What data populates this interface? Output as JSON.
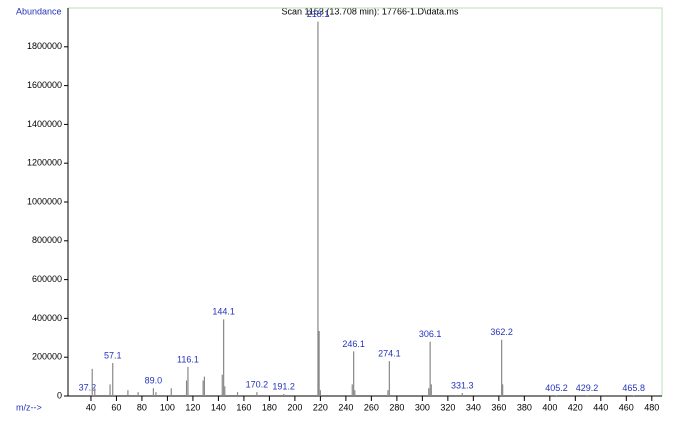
{
  "chart_data": {
    "type": "spectrum",
    "title": "Scan 1153 (13.708 min): 17766-1.D\\data.ms",
    "ylabel": "Abundance",
    "xlabel": "m/z-->",
    "x": [
      37.2,
      41,
      43,
      55,
      57.1,
      69,
      77,
      89,
      91,
      103,
      115,
      116.1,
      128,
      129,
      143,
      144.1,
      145,
      155,
      170.2,
      191.2,
      218.1,
      219,
      220,
      245,
      246.1,
      247,
      273,
      274.1,
      305,
      306.1,
      307,
      331.3,
      362.2,
      363,
      405.2,
      429.2,
      465.8
    ],
    "values": [
      5000,
      140000,
      40000,
      60000,
      170000,
      30000,
      20000,
      40000,
      20000,
      40000,
      80000,
      150000,
      80000,
      100000,
      110000,
      395000,
      50000,
      20000,
      20000,
      10000,
      1930000,
      335000,
      30000,
      60000,
      230000,
      30000,
      30000,
      180000,
      40000,
      280000,
      60000,
      15000,
      290000,
      60000,
      3000,
      3000,
      3000
    ],
    "x_labels": [
      "37.2",
      null,
      null,
      null,
      "57.1",
      null,
      null,
      "89.0",
      null,
      null,
      null,
      "116.1",
      null,
      null,
      null,
      "144.1",
      null,
      null,
      "170.2",
      "191.2",
      "218.1",
      null,
      null,
      null,
      "246.1",
      null,
      null,
      "274.1",
      null,
      "306.1",
      null,
      "331.3",
      "362.2",
      null,
      "405.2",
      "429.2",
      "465.8"
    ],
    "color": "#888888",
    "label_color": "#2233bb",
    "frame_color": "#b8e0b8",
    "xlim": [
      22,
      488
    ],
    "ylim": [
      0,
      2000000
    ],
    "xticks": [
      40,
      60,
      80,
      100,
      120,
      140,
      160,
      180,
      200,
      220,
      240,
      260,
      280,
      300,
      320,
      340,
      360,
      380,
      400,
      420,
      440,
      460,
      480
    ],
    "yticks": [
      0,
      200000,
      400000,
      600000,
      800000,
      1000000,
      1200000,
      1400000,
      1600000,
      1800000
    ]
  }
}
